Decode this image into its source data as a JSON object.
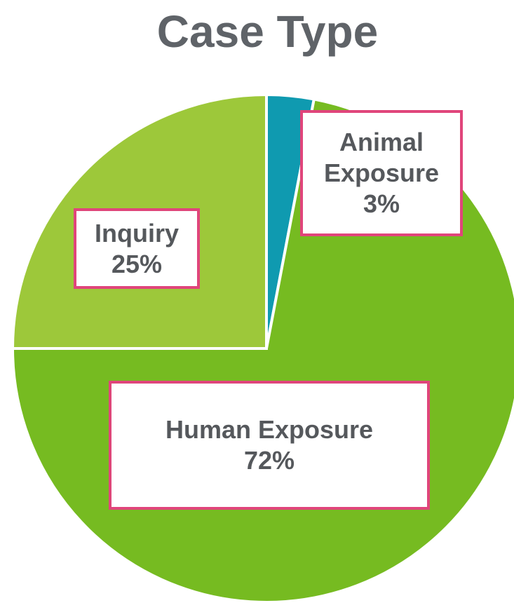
{
  "chart_data": {
    "type": "pie",
    "title": "Case Type",
    "categories": [
      "Animal Exposure",
      "Human Exposure",
      "Inquiry"
    ],
    "values": [
      3,
      72,
      25
    ],
    "value_labels": [
      "3%",
      "72%",
      "25%"
    ],
    "colors": [
      "#0f9ab0",
      "#76bb21",
      "#9dc83a"
    ]
  }
}
